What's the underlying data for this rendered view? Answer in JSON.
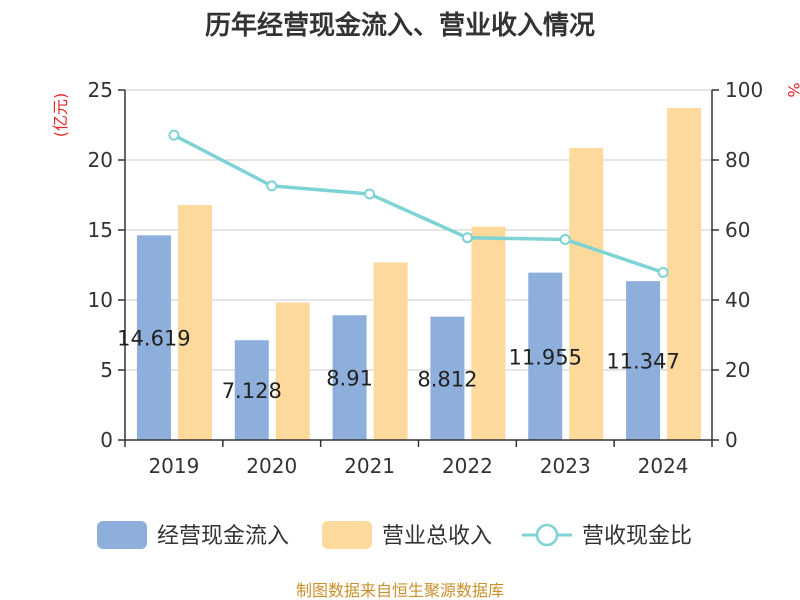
{
  "colors": {
    "cash_flow": "#8eaedb",
    "revenue": "#fdd99b",
    "ratio": "#7fd3d5",
    "axis": "#333333",
    "grid": "#cccccc",
    "unit": "#e8262a",
    "source": "#c9902c"
  },
  "chart_data": {
    "type": "bar",
    "title": "历年经营现金流入、营业收入情况",
    "categories": [
      "2019",
      "2020",
      "2021",
      "2022",
      "2023",
      "2024"
    ],
    "y_left": {
      "unit": "(亿元)",
      "min": 0,
      "max": 25,
      "ticks": [
        0,
        5,
        10,
        15,
        20,
        25
      ]
    },
    "y_right": {
      "unit": "%",
      "min": 0,
      "max": 100,
      "ticks": [
        0,
        20,
        40,
        60,
        80,
        100
      ]
    },
    "series": [
      {
        "name": "经营现金流入",
        "type": "bar",
        "axis": "left",
        "values": [
          14.619,
          7.128,
          8.91,
          8.812,
          11.955,
          11.347
        ],
        "labels": [
          "14.619",
          "7.128",
          "8.91",
          "8.812",
          "11.955",
          "11.347"
        ]
      },
      {
        "name": "营业总收入",
        "type": "bar",
        "axis": "left",
        "values": [
          16.78,
          9.82,
          12.68,
          15.24,
          20.86,
          23.71
        ]
      },
      {
        "name": "营收现金比",
        "type": "line",
        "axis": "right",
        "values": [
          87.1,
          72.6,
          70.3,
          57.8,
          57.3,
          47.9
        ]
      }
    ],
    "legend_position": "bottom",
    "source": "制图数据来自恒生聚源数据库"
  }
}
